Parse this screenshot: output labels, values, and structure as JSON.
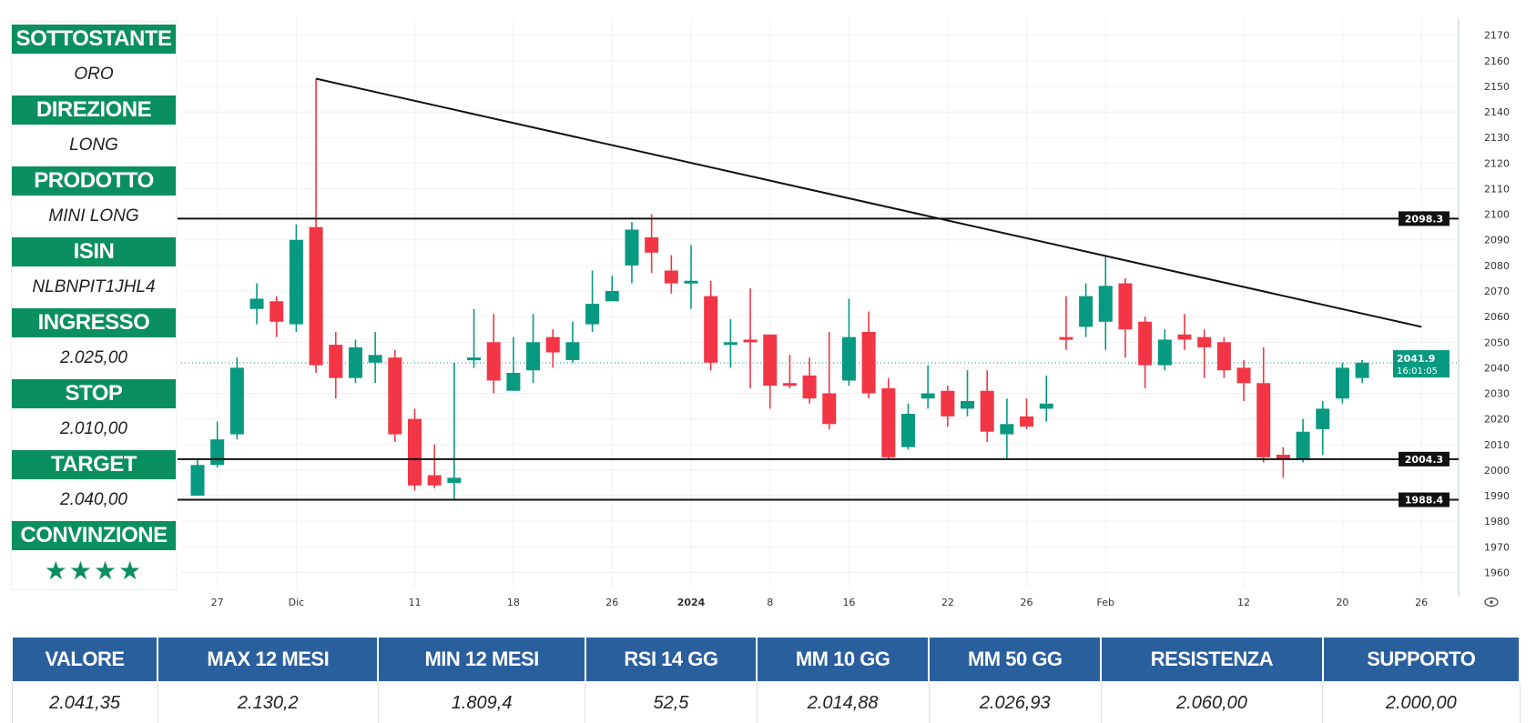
{
  "panel": [
    {
      "label": "SOTTOSTANTE",
      "value": "ORO"
    },
    {
      "label": "DIREZIONE",
      "value": "LONG"
    },
    {
      "label": "PRODOTTO",
      "value": "MINI LONG"
    },
    {
      "label": "ISIN",
      "value": "NLBNPIT1JHL4"
    },
    {
      "label": "INGRESSO",
      "value": "2.025,00"
    },
    {
      "label": "STOP",
      "value": "2.010,00"
    },
    {
      "label": "TARGET",
      "value": "2.040,00"
    },
    {
      "label": "CONVINZIONE",
      "value": "★★★★"
    }
  ],
  "stats": {
    "headers": [
      "VALORE",
      "MAX 12 MESI",
      "MIN 12 MESI",
      "RSI 14 GG",
      "MM 10 GG",
      "MM 50 GG",
      "RESISTENZA",
      "SUPPORTO"
    ],
    "values": [
      "2.041,35",
      "2.130,2",
      "1.809,4",
      "52,5",
      "2.014,88",
      "2.026,93",
      "2.060,00",
      "2.000,00"
    ]
  },
  "colors": {
    "up": "#089981",
    "down": "#f23645",
    "panel": "#0a8f5e",
    "table": "#2a5f9e"
  },
  "chart_data": {
    "type": "candlestick",
    "title": "",
    "ylim": [
      1955,
      2175
    ],
    "y_ticks": [
      1960,
      1970,
      1980,
      1990,
      2000,
      2010,
      2020,
      2030,
      2040,
      2050,
      2060,
      2070,
      2080,
      2090,
      2100,
      2110,
      2120,
      2130,
      2140,
      2150,
      2160,
      2170
    ],
    "x_labels": [
      {
        "label": "27",
        "index": 1
      },
      {
        "label": "Dic",
        "index": 5
      },
      {
        "label": "11",
        "index": 11
      },
      {
        "label": "18",
        "index": 16
      },
      {
        "label": "26",
        "index": 21
      },
      {
        "label": "2024",
        "index": 25
      },
      {
        "label": "8",
        "index": 29
      },
      {
        "label": "16",
        "index": 33
      },
      {
        "label": "22",
        "index": 38
      },
      {
        "label": "26",
        "index": 42
      },
      {
        "label": "Feb",
        "index": 46
      },
      {
        "label": "12",
        "index": 53
      },
      {
        "label": "20",
        "index": 58
      },
      {
        "label": "26",
        "index": 62
      }
    ],
    "ohlc": [
      [
        1990,
        2004,
        1990,
        2002
      ],
      [
        2002,
        2019,
        2001,
        2012
      ],
      [
        2014,
        2044,
        2012,
        2040
      ],
      [
        2063,
        2073,
        2057,
        2067
      ],
      [
        2066,
        2068,
        2052,
        2058
      ],
      [
        2057,
        2096,
        2054,
        2090
      ],
      [
        2095,
        2153,
        2038,
        2041
      ],
      [
        2049,
        2054,
        2028,
        2036
      ],
      [
        2036,
        2051,
        2034,
        2048
      ],
      [
        2042,
        2054,
        2034,
        2045
      ],
      [
        2044,
        2047,
        2011,
        2014
      ],
      [
        2020,
        2024,
        1992,
        1994
      ],
      [
        1998,
        2010,
        1993,
        1994
      ],
      [
        1995,
        2042,
        1988,
        1997
      ],
      [
        2043,
        2063,
        2040,
        2044
      ],
      [
        2050,
        2061,
        2030,
        2035
      ],
      [
        2031,
        2052,
        2031,
        2038
      ],
      [
        2039,
        2061,
        2034,
        2050
      ],
      [
        2052,
        2055,
        2040,
        2046
      ],
      [
        2043,
        2058,
        2042,
        2050
      ],
      [
        2057,
        2078,
        2054,
        2065
      ],
      [
        2066,
        2076,
        2066,
        2070
      ],
      [
        2080,
        2097,
        2073,
        2094
      ],
      [
        2091,
        2100,
        2077,
        2085
      ],
      [
        2078,
        2084,
        2069,
        2073
      ],
      [
        2073,
        2088,
        2063,
        2074
      ],
      [
        2068,
        2074,
        2039,
        2042
      ],
      [
        2049,
        2059,
        2040,
        2050
      ],
      [
        2051,
        2071,
        2032,
        2050
      ],
      [
        2053,
        2053,
        2024,
        2033
      ],
      [
        2034,
        2045,
        2032,
        2033
      ],
      [
        2037,
        2044,
        2026,
        2028
      ],
      [
        2030,
        2054,
        2016,
        2018
      ],
      [
        2035,
        2067,
        2033,
        2052
      ],
      [
        2054,
        2062,
        2028,
        2030
      ],
      [
        2032,
        2036,
        2004,
        2005
      ],
      [
        2009,
        2026,
        2008,
        2022
      ],
      [
        2028,
        2041,
        2024,
        2030
      ],
      [
        2031,
        2033,
        2017,
        2021
      ],
      [
        2024,
        2039,
        2021,
        2027
      ],
      [
        2031,
        2039,
        2011,
        2015
      ],
      [
        2014,
        2028,
        2004,
        2018
      ],
      [
        2021,
        2028,
        2016,
        2017
      ],
      [
        2024,
        2037,
        2019,
        2026
      ],
      [
        2052,
        2068,
        2047,
        2051
      ],
      [
        2056,
        2073,
        2052,
        2068
      ],
      [
        2058,
        2084,
        2047,
        2072
      ],
      [
        2073,
        2075,
        2044,
        2055
      ],
      [
        2058,
        2060,
        2032,
        2041
      ],
      [
        2041,
        2055,
        2039,
        2051
      ],
      [
        2053,
        2061,
        2047,
        2051
      ],
      [
        2052,
        2055,
        2036,
        2048
      ],
      [
        2050,
        2052,
        2036,
        2039
      ],
      [
        2040,
        2043,
        2027,
        2034
      ],
      [
        2034,
        2048,
        2003,
        2005
      ],
      [
        2006,
        2009,
        1997,
        2004
      ],
      [
        2004,
        2020,
        2003,
        2015
      ],
      [
        2016,
        2027,
        2006,
        2024
      ],
      [
        2028,
        2042,
        2026,
        2040
      ],
      [
        2036,
        2043,
        2034,
        2042
      ]
    ],
    "levels": [
      {
        "value": 2098.3,
        "label": "2098.3"
      },
      {
        "value": 2004.3,
        "label": "2004.3"
      },
      {
        "value": 1988.4,
        "label": "1988.4"
      }
    ],
    "trendline": {
      "from": {
        "index": 6,
        "price": 2153
      },
      "to": {
        "index": 62,
        "price": 2056
      }
    },
    "last_price": {
      "value": 2041.9,
      "label": "2041.9",
      "time": "16:01:05"
    }
  }
}
